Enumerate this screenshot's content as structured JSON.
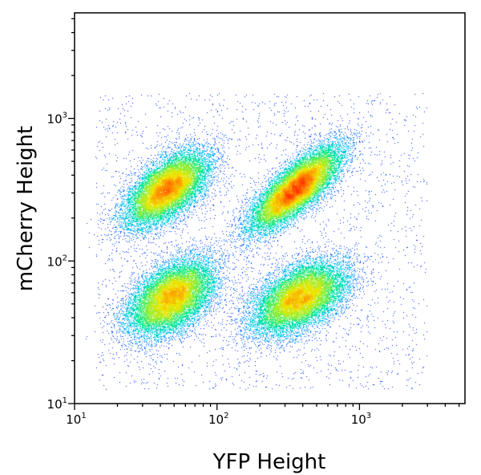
{
  "chart_data": {
    "type": "scatter",
    "subtype": "flow-cytometry density dot plot",
    "xlabel": "YFP Height",
    "ylabel": "mCherry Height",
    "x_scale": "log",
    "y_scale": "log",
    "xlim": [
      10,
      5500
    ],
    "ylim": [
      10,
      5500
    ],
    "x_ticks": [
      {
        "base": "10",
        "exp": "1",
        "value": 10
      },
      {
        "base": "10",
        "exp": "2",
        "value": 100
      },
      {
        "base": "10",
        "exp": "3",
        "value": 1000
      }
    ],
    "y_ticks": [
      {
        "base": "10",
        "exp": "1",
        "value": 10
      },
      {
        "base": "10",
        "exp": "2",
        "value": 100
      },
      {
        "base": "10",
        "exp": "3",
        "value": 1000
      }
    ],
    "grid": false,
    "legend": "none",
    "color_scale": [
      "#0000ff",
      "#00b4ff",
      "#00e6a0",
      "#8cf03c",
      "#f0e600",
      "#ff8c00",
      "#ff2800"
    ],
    "series": [
      {
        "center": [
          45,
          320
        ],
        "points": 14000,
        "sigma_major": 0.17,
        "sigma_minor": 0.085,
        "tilt_deg": 40
      },
      {
        "center": [
          360,
          320
        ],
        "points": 16000,
        "sigma_major": 0.2,
        "sigma_minor": 0.07,
        "tilt_deg": 42
      },
      {
        "center": [
          48,
          55
        ],
        "points": 14000,
        "sigma_major": 0.17,
        "sigma_minor": 0.1,
        "tilt_deg": 38
      },
      {
        "center": [
          380,
          55
        ],
        "points": 14000,
        "sigma_major": 0.18,
        "sigma_minor": 0.1,
        "tilt_deg": 30
      }
    ],
    "background_points": 2500
  }
}
